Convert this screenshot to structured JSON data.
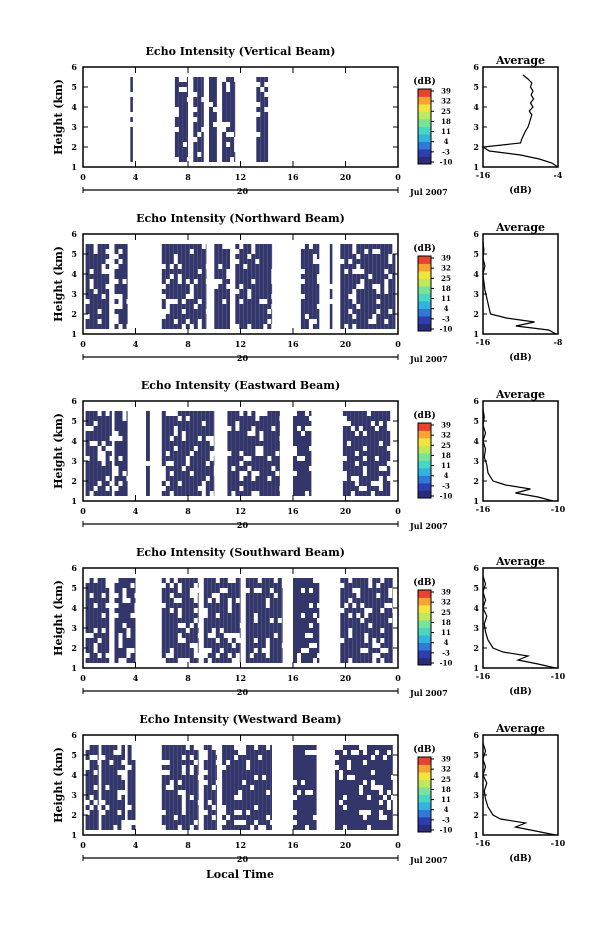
{
  "figure": {
    "xlabel": "Local Time"
  },
  "colors": {
    "echo": "#33366a",
    "colorbar": [
      "#2a2c7a",
      "#2d3fb0",
      "#2f79d8",
      "#33b3e0",
      "#49d6c3",
      "#79e39a",
      "#bfe85a",
      "#f2e33e",
      "#f7a432",
      "#e8432e"
    ]
  },
  "chart_data": [
    {
      "type": "heatmap",
      "beam": "vertical",
      "title": "Echo Intensity (Vertical Beam)",
      "ylabel": "Height (km)",
      "ylim": [
        1,
        6
      ],
      "yticks": [
        "1",
        "2",
        "3",
        "4",
        "5",
        "6"
      ],
      "xlim": [
        0,
        24
      ],
      "xticks": [
        "0",
        "4",
        "8",
        "12",
        "16",
        "20",
        "0"
      ],
      "date_label": "Jul 2007",
      "date_tick": "20",
      "colorbar": {
        "label": "(dB)",
        "ticks": [
          "39",
          "32",
          "25",
          "18",
          "11",
          "4",
          "-3",
          "-10"
        ]
      },
      "echo_segments": [
        [
          3.6,
          3.8
        ],
        [
          7.0,
          8.0
        ],
        [
          8.4,
          9.2
        ],
        [
          9.6,
          10.2
        ],
        [
          10.6,
          11.6
        ],
        [
          13.2,
          14.1
        ]
      ],
      "echo_top_km": 5.5,
      "echo_bottom_km": 1.3,
      "average": {
        "title": "Average",
        "xlabel": "(dB)",
        "xticks": [
          "-16",
          "-4"
        ],
        "xlim": [
          -16,
          -4
        ],
        "height_km": [
          1.0,
          1.2,
          1.4,
          1.6,
          1.8,
          2.0,
          2.2,
          2.4,
          2.6,
          2.8,
          3.0,
          3.2,
          3.4,
          3.6,
          3.8,
          4.0,
          4.2,
          4.4,
          4.6,
          4.8,
          5.0,
          5.2,
          5.4,
          5.6
        ],
        "db": [
          -4,
          -5,
          -7,
          -10,
          -15,
          -16,
          -10,
          -9.8,
          -9.5,
          -9.2,
          -8.8,
          -8.6,
          -8.4,
          -8.2,
          -8.6,
          -8.0,
          -8.4,
          -7.9,
          -8.3,
          -8.0,
          -8.4,
          -8.2,
          -8.8,
          -9.6
        ]
      }
    },
    {
      "type": "heatmap",
      "beam": "northward",
      "title": "Echo Intensity (Northward Beam)",
      "ylabel": "Height (km)",
      "ylim": [
        1,
        6
      ],
      "yticks": [
        "1",
        "2",
        "3",
        "4",
        "5",
        "6"
      ],
      "xlim": [
        0,
        24
      ],
      "xticks": [
        "0",
        "4",
        "8",
        "12",
        "16",
        "20",
        "0"
      ],
      "date_label": "Jul 2007",
      "date_tick": "20",
      "colorbar": {
        "label": "(dB)",
        "ticks": [
          "39",
          "32",
          "25",
          "18",
          "11",
          "4",
          "-3",
          "-10"
        ]
      },
      "echo_segments": [
        [
          0.2,
          2.0
        ],
        [
          2.4,
          3.4
        ],
        [
          6.0,
          9.4
        ],
        [
          10.0,
          11.2
        ],
        [
          11.6,
          14.4
        ],
        [
          16.6,
          18.0
        ],
        [
          18.8,
          19.0
        ],
        [
          19.6,
          23.8
        ]
      ],
      "echo_top_km": 5.5,
      "echo_bottom_km": 1.3,
      "average": {
        "title": "Average",
        "xlabel": "(dB)",
        "xticks": [
          "-16",
          "-8"
        ],
        "xlim": [
          -16,
          -8
        ],
        "height_km": [
          1.0,
          1.2,
          1.4,
          1.6,
          1.8,
          2.0,
          2.4,
          2.8,
          3.2,
          3.6,
          4.0,
          4.4,
          4.8,
          5.2,
          5.6
        ],
        "db": [
          -8.2,
          -9,
          -12.5,
          -10.5,
          -13.5,
          -15.2,
          -15.4,
          -15.6,
          -15.8,
          -15.9,
          -16,
          -15.8,
          -16,
          -15.9,
          -16
        ]
      }
    },
    {
      "type": "heatmap",
      "beam": "eastward",
      "title": "Echo Intensity (Eastward Beam)",
      "ylabel": "Height (km)",
      "ylim": [
        1,
        6
      ],
      "yticks": [
        "1",
        "2",
        "3",
        "4",
        "5",
        "6"
      ],
      "xlim": [
        0,
        24
      ],
      "xticks": [
        "0",
        "4",
        "8",
        "12",
        "16",
        "20",
        "0"
      ],
      "date_label": "Jul 2007",
      "date_tick": "20",
      "colorbar": {
        "label": "(dB)",
        "ticks": [
          "39",
          "32",
          "25",
          "18",
          "11",
          "4",
          "-3",
          "-10"
        ]
      },
      "echo_segments": [
        [
          0.2,
          2.2
        ],
        [
          2.4,
          3.4
        ],
        [
          4.8,
          5.1
        ],
        [
          6.0,
          10.0
        ],
        [
          11.0,
          15.0
        ],
        [
          16.0,
          17.4
        ],
        [
          19.8,
          23.4
        ]
      ],
      "echo_top_km": 5.5,
      "echo_bottom_km": 1.3,
      "average": {
        "title": "Average",
        "xlabel": "",
        "xticks": [
          "-16",
          "-10"
        ],
        "xlim": [
          -16,
          -10
        ],
        "height_km": [
          1.0,
          1.2,
          1.4,
          1.6,
          1.8,
          2.0,
          2.4,
          2.8,
          3.2,
          3.6,
          4.0,
          4.4,
          4.8,
          5.2,
          5.6
        ],
        "db": [
          -10.4,
          -11.6,
          -13.4,
          -12.2,
          -14.2,
          -15.2,
          -15.6,
          -15.7,
          -15.9,
          -15.8,
          -16,
          -15.8,
          -16,
          -15.9,
          -16
        ]
      }
    },
    {
      "type": "heatmap",
      "beam": "southward",
      "title": "Echo Intensity (Southward Beam)",
      "ylabel": "Height (km)",
      "ylim": [
        1,
        6
      ],
      "yticks": [
        "1",
        "2",
        "3",
        "4",
        "5",
        "6"
      ],
      "xlim": [
        0,
        24
      ],
      "xticks": [
        "0",
        "4",
        "8",
        "12",
        "16",
        "20",
        "0"
      ],
      "date_label": "Jul 2007",
      "date_tick": "20",
      "colorbar": {
        "label": "(dB)",
        "ticks": [
          "39",
          "32",
          "25",
          "18",
          "11",
          "4",
          "-3",
          "-10"
        ]
      },
      "echo_segments": [
        [
          0.2,
          2.0
        ],
        [
          2.4,
          4.0
        ],
        [
          6.0,
          8.8
        ],
        [
          9.2,
          12.0
        ],
        [
          12.4,
          15.2
        ],
        [
          16.0,
          18.0
        ],
        [
          19.6,
          23.6
        ]
      ],
      "echo_top_km": 5.5,
      "echo_bottom_km": 1.3,
      "average": {
        "title": "Average",
        "xlabel": "(dB)",
        "xticks": [
          "-16",
          "-10"
        ],
        "xlim": [
          -16,
          -10
        ],
        "height_km": [
          1.0,
          1.2,
          1.4,
          1.6,
          1.8,
          2.0,
          2.4,
          2.8,
          3.2,
          3.6,
          4.0,
          4.4,
          4.8,
          5.2,
          5.6
        ],
        "db": [
          -10.2,
          -11.6,
          -13.2,
          -12.4,
          -14.4,
          -15.2,
          -15.6,
          -15.8,
          -15.9,
          -15.7,
          -16,
          -15.8,
          -16,
          -15.8,
          -16
        ]
      }
    },
    {
      "type": "heatmap",
      "beam": "westward",
      "title": "Echo Intensity (Westward Beam)",
      "ylabel": "Height (km)",
      "ylim": [
        1,
        6
      ],
      "yticks": [
        "1",
        "2",
        "3",
        "4",
        "5",
        "6"
      ],
      "xlim": [
        0,
        24
      ],
      "xticks": [
        "0",
        "4",
        "8",
        "12",
        "16",
        "20",
        "0"
      ],
      "date_label": "Jul 2007",
      "date_tick": "20",
      "colorbar": {
        "label": "(dB)",
        "ticks": [
          "39",
          "32",
          "25",
          "18",
          "11",
          "4",
          "-3",
          "-10"
        ]
      },
      "echo_segments": [
        [
          0.2,
          1.2
        ],
        [
          1.4,
          3.2
        ],
        [
          3.4,
          4.0
        ],
        [
          6.0,
          8.8
        ],
        [
          9.2,
          10.2
        ],
        [
          10.6,
          14.4
        ],
        [
          16.0,
          17.8
        ],
        [
          19.2,
          23.6
        ]
      ],
      "echo_top_km": 5.5,
      "echo_bottom_km": 1.3,
      "average": {
        "title": "Average",
        "xlabel": "(dB)",
        "xticks": [
          "-16",
          "-10"
        ],
        "xlim": [
          -16,
          -10
        ],
        "height_km": [
          1.0,
          1.2,
          1.4,
          1.6,
          1.8,
          2.0,
          2.4,
          2.8,
          3.2,
          3.6,
          4.0,
          4.4,
          4.8,
          5.2,
          5.6
        ],
        "db": [
          -10.2,
          -11.8,
          -13.4,
          -12.6,
          -14.6,
          -15.2,
          -15.6,
          -15.8,
          -15.9,
          -15.7,
          -16,
          -15.8,
          -16,
          -15.8,
          -16
        ]
      }
    }
  ]
}
